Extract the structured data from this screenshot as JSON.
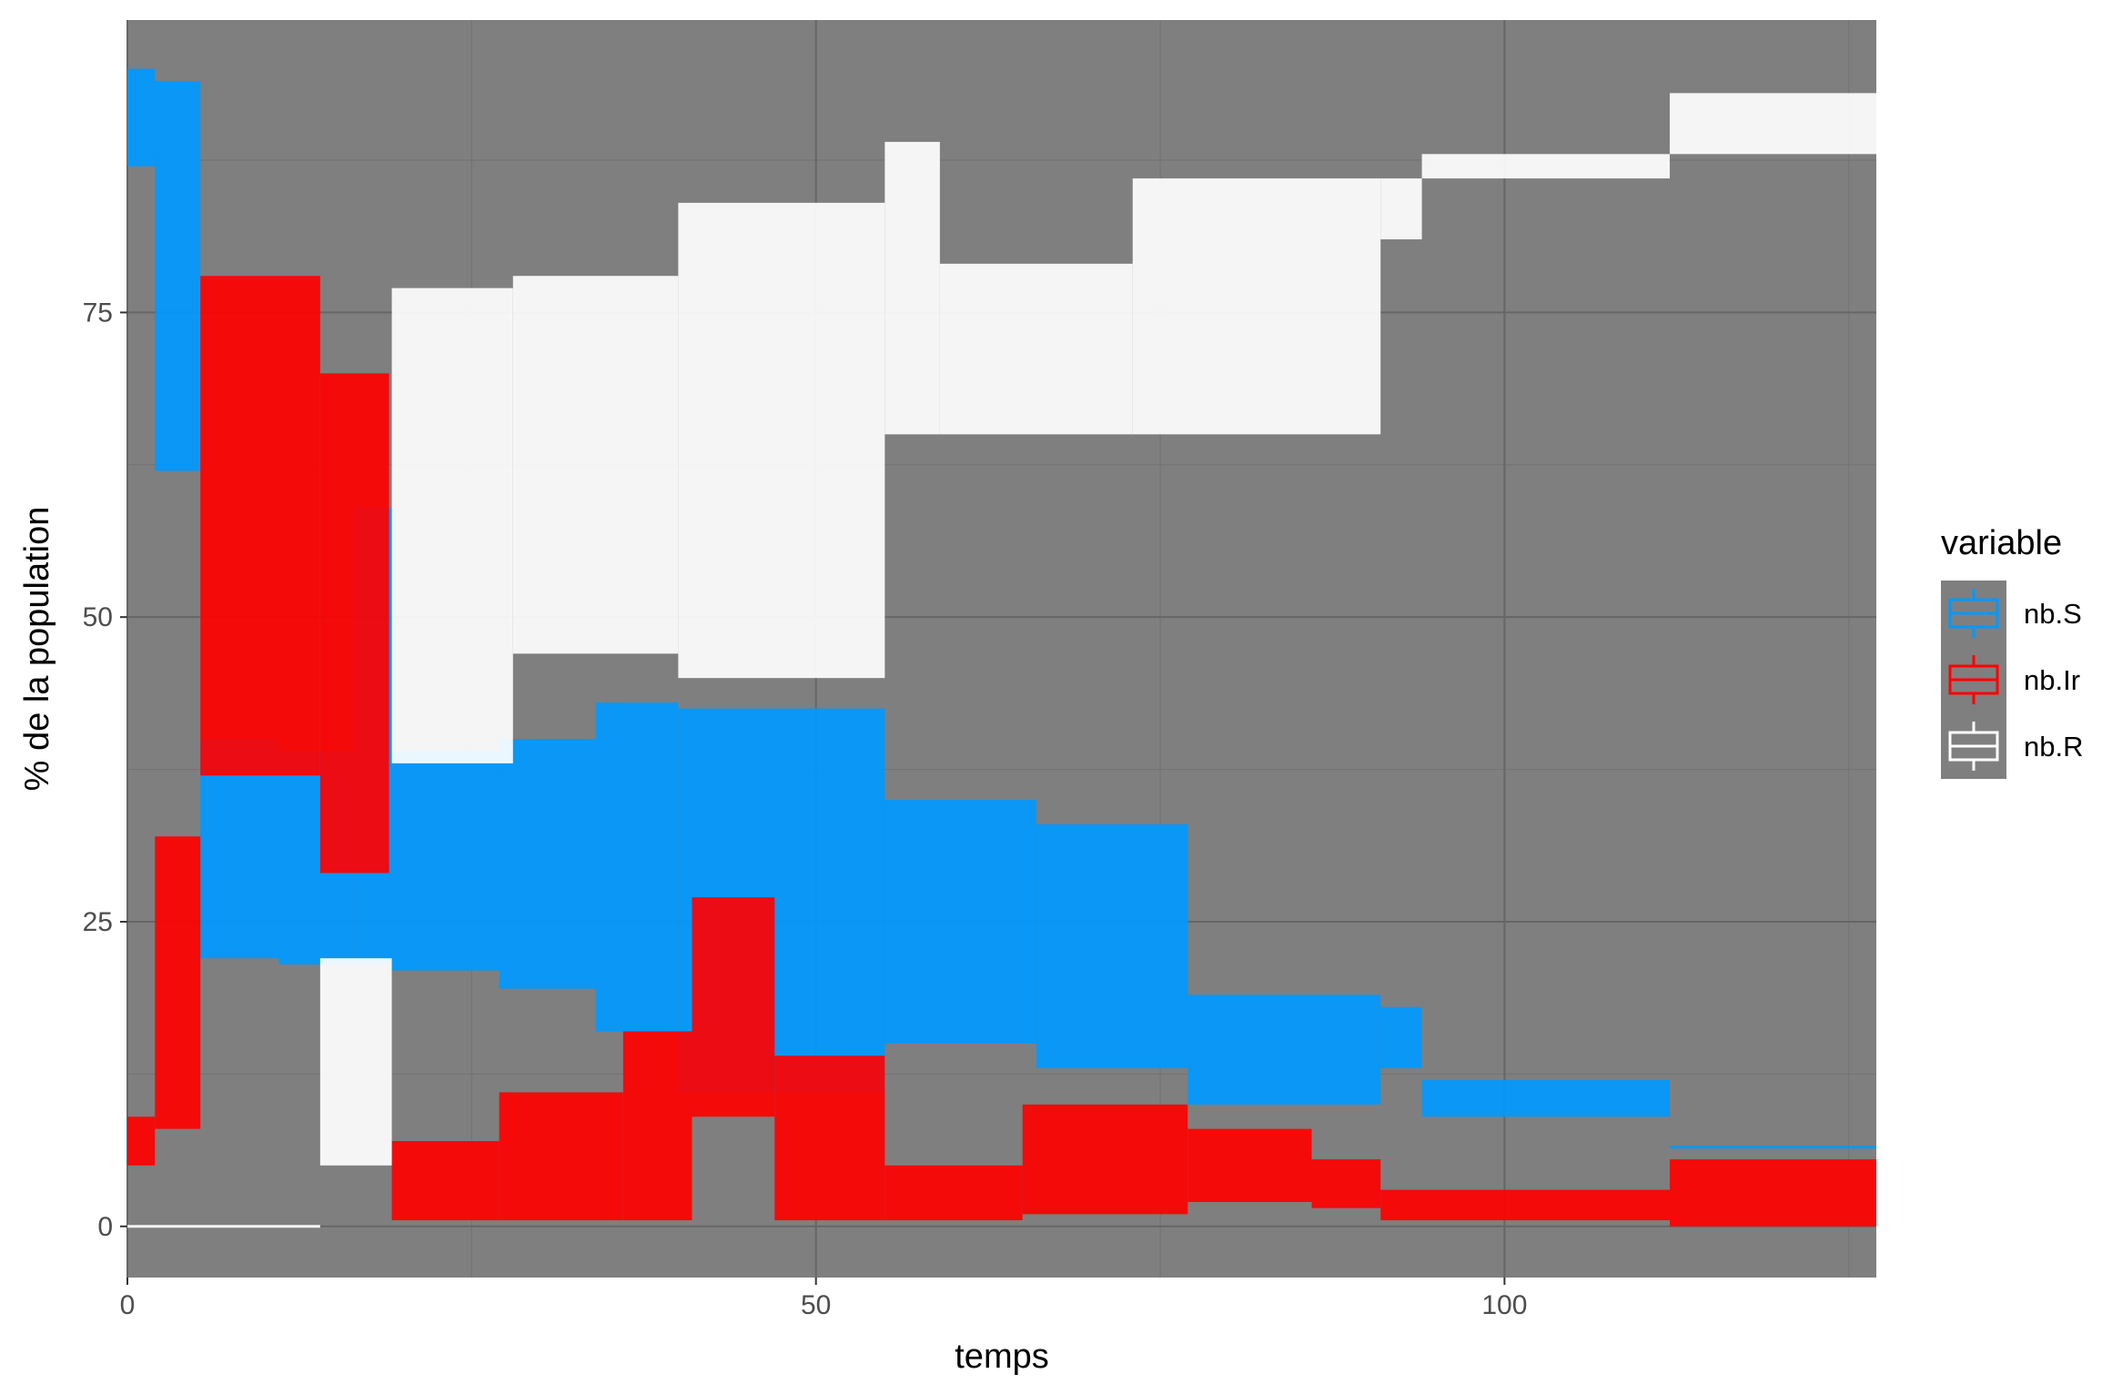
{
  "chart_data": {
    "type": "boxplot",
    "xlabel": "temps",
    "ylabel": "% de la population",
    "xlim": [
      0,
      127
    ],
    "ylim": [
      -4.2,
      99
    ],
    "x_ticks": [
      0,
      50,
      100
    ],
    "y_ticks": [
      0,
      25,
      50,
      75
    ],
    "grid": true,
    "panel_background": "#7f7f7f",
    "legend": {
      "title": "variable",
      "position": "right",
      "entries": [
        "nb.S",
        "nb.Ir",
        "nb.R"
      ]
    },
    "series": [
      {
        "name": "nb.S",
        "color": "#0099ff",
        "boxes": [
          {
            "x_from": 0,
            "x_to": 2,
            "lower": 87,
            "upper": 95
          },
          {
            "x_from": 2,
            "x_to": 5.3,
            "lower": 62,
            "upper": 94
          },
          {
            "x_from": 5.3,
            "x_to": 11,
            "lower": 22,
            "upper": 40
          },
          {
            "x_from": 11,
            "x_to": 16.5,
            "lower": 21.5,
            "upper": 39
          },
          {
            "x_from": 16.5,
            "x_to": 19.2,
            "lower": 21.5,
            "upper": 59
          },
          {
            "x_from": 19.2,
            "x_to": 27,
            "lower": 21,
            "upper": 39
          },
          {
            "x_from": 27,
            "x_to": 34,
            "lower": 19.5,
            "upper": 40
          },
          {
            "x_from": 34,
            "x_to": 40,
            "lower": 16,
            "upper": 43
          },
          {
            "x_from": 40,
            "x_to": 55,
            "lower": 11,
            "upper": 42.5
          },
          {
            "x_from": 55,
            "x_to": 66,
            "lower": 15,
            "upper": 35
          },
          {
            "x_from": 66,
            "x_to": 77,
            "lower": 13,
            "upper": 33
          },
          {
            "x_from": 77,
            "x_to": 91,
            "lower": 10,
            "upper": 19
          },
          {
            "x_from": 91,
            "x_to": 94,
            "lower": 13,
            "upper": 18
          },
          {
            "x_from": 94,
            "x_to": 112,
            "lower": 9,
            "upper": 12
          },
          {
            "x_from": 112,
            "x_to": 127,
            "lower": 6.5,
            "upper": 6.5
          }
        ]
      },
      {
        "name": "nb.Ir",
        "color": "#ff0000",
        "boxes": [
          {
            "x_from": 0,
            "x_to": 2,
            "lower": 5,
            "upper": 9
          },
          {
            "x_from": 2,
            "x_to": 5.3,
            "lower": 8,
            "upper": 32
          },
          {
            "x_from": 5.3,
            "x_to": 14,
            "lower": 37,
            "upper": 78
          },
          {
            "x_from": 14,
            "x_to": 19,
            "lower": 29,
            "upper": 70
          },
          {
            "x_from": 19.2,
            "x_to": 27,
            "lower": 0.5,
            "upper": 7
          },
          {
            "x_from": 27,
            "x_to": 36,
            "lower": 0.5,
            "upper": 11
          },
          {
            "x_from": 36,
            "x_to": 41,
            "lower": 0.5,
            "upper": 16
          },
          {
            "x_from": 41,
            "x_to": 47,
            "lower": 9,
            "upper": 27
          },
          {
            "x_from": 47,
            "x_to": 55,
            "lower": 0.5,
            "upper": 14
          },
          {
            "x_from": 55,
            "x_to": 65,
            "lower": 0.5,
            "upper": 5
          },
          {
            "x_from": 65,
            "x_to": 77,
            "lower": 1,
            "upper": 10
          },
          {
            "x_from": 77,
            "x_to": 86,
            "lower": 2,
            "upper": 8
          },
          {
            "x_from": 86,
            "x_to": 91,
            "lower": 1.5,
            "upper": 5.5
          },
          {
            "x_from": 91,
            "x_to": 112,
            "lower": 0.5,
            "upper": 3
          },
          {
            "x_from": 112,
            "x_to": 127,
            "lower": 0,
            "upper": 5.5
          }
        ]
      },
      {
        "name": "nb.R",
        "color": "#ffffff",
        "boxes": [
          {
            "x_from": 0,
            "x_to": 14,
            "lower": 0,
            "upper": 0
          },
          {
            "x_from": 14,
            "x_to": 19.2,
            "lower": 5,
            "upper": 22
          },
          {
            "x_from": 19.2,
            "x_to": 28,
            "lower": 38,
            "upper": 77
          },
          {
            "x_from": 28,
            "x_to": 40,
            "lower": 47,
            "upper": 78
          },
          {
            "x_from": 40,
            "x_to": 55,
            "lower": 45,
            "upper": 84
          },
          {
            "x_from": 55,
            "x_to": 59,
            "lower": 65,
            "upper": 89
          },
          {
            "x_from": 59,
            "x_to": 73,
            "lower": 65,
            "upper": 79
          },
          {
            "x_from": 73,
            "x_to": 91,
            "lower": 65,
            "upper": 86
          },
          {
            "x_from": 91,
            "x_to": 94,
            "lower": 81,
            "upper": 86
          },
          {
            "x_from": 94,
            "x_to": 112,
            "lower": 86,
            "upper": 88
          },
          {
            "x_from": 112,
            "x_to": 127,
            "lower": 88,
            "upper": 93
          }
        ]
      }
    ]
  }
}
